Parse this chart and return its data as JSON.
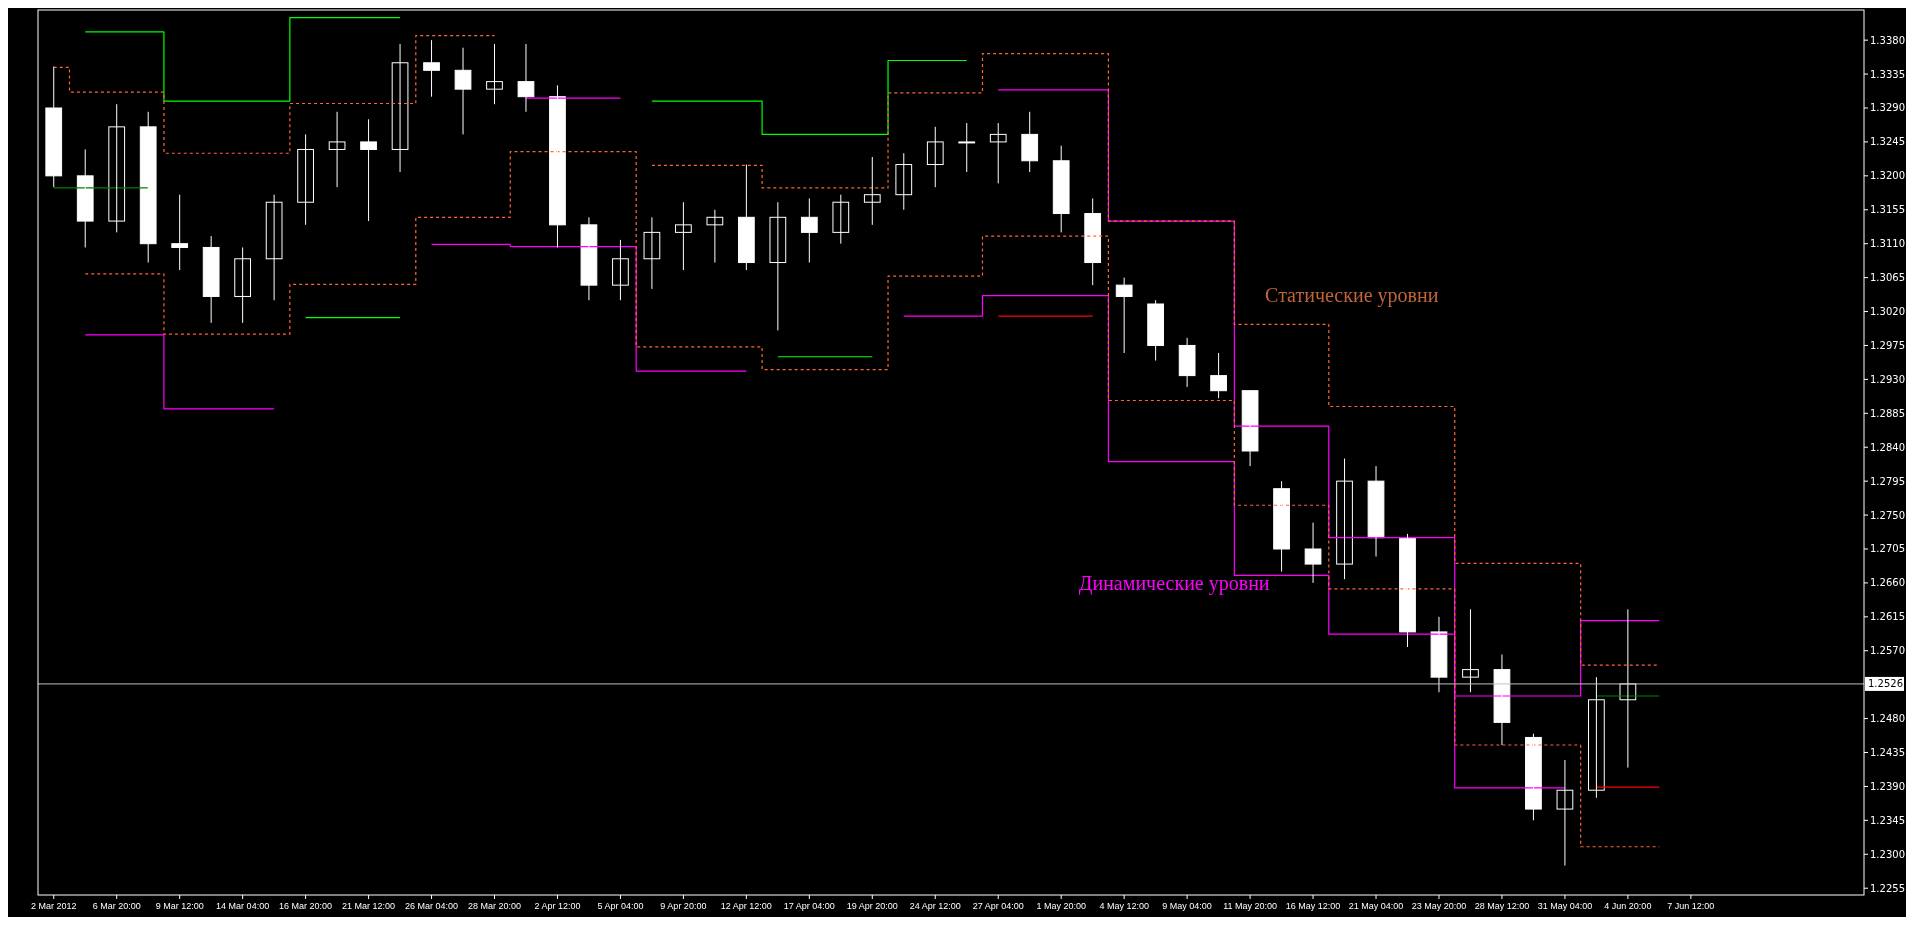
{
  "chart_data": {
    "type": "candlestick",
    "categories": [
      "2 Mar 2012",
      null,
      "6 Mar 20:00",
      null,
      "9 Mar 12:00",
      null,
      "14 Mar 04:00",
      null,
      "16 Mar 20:00",
      null,
      "21 Mar 12:00",
      null,
      "26 Mar 04:00",
      null,
      "28 Mar 20:00",
      null,
      "2 Apr 12:00",
      null,
      "5 Apr 04:00",
      null,
      "9 Apr 20:00",
      null,
      "12 Apr 12:00",
      null,
      "17 Apr 04:00",
      null,
      "19 Apr 20:00",
      null,
      "24 Apr 12:00",
      null,
      "27 Apr 04:00",
      null,
      "1 May 20:00",
      null,
      "4 May 12:00",
      null,
      "9 May 04:00",
      null,
      "11 May 20:00",
      null,
      "16 May 12:00",
      null,
      "21 May 04:00",
      null,
      "23 May 20:00",
      null,
      "28 May 12:00",
      null,
      "31 May 04:00",
      null,
      "4 Jun 20:00",
      null,
      "7 Jun 12:00",
      null,
      null,
      null,
      null,
      null
    ],
    "ohlc": [
      [
        1.329,
        1.3345,
        1.3185,
        1.32
      ],
      [
        1.32,
        1.3235,
        1.3105,
        1.314
      ],
      [
        1.314,
        1.3295,
        1.3125,
        1.3265
      ],
      [
        1.3265,
        1.3285,
        1.3085,
        1.311
      ],
      [
        1.311,
        1.3175,
        1.3075,
        1.3105
      ],
      [
        1.3105,
        1.312,
        1.3005,
        1.304
      ],
      [
        1.304,
        1.3105,
        1.3005,
        1.309
      ],
      [
        1.309,
        1.3175,
        1.3035,
        1.3165
      ],
      [
        1.3165,
        1.3255,
        1.3135,
        1.3235
      ],
      [
        1.3235,
        1.3285,
        1.3185,
        1.3245
      ],
      [
        1.3245,
        1.3275,
        1.314,
        1.3235
      ],
      [
        1.3235,
        1.3375,
        1.3205,
        1.335
      ],
      [
        1.335,
        1.338,
        1.3305,
        1.334
      ],
      [
        1.334,
        1.337,
        1.3255,
        1.3315
      ],
      [
        1.3315,
        1.3375,
        1.3295,
        1.3325
      ],
      [
        1.3325,
        1.3375,
        1.3285,
        1.3305
      ],
      [
        1.3305,
        1.332,
        1.3105,
        1.3135
      ],
      [
        1.3135,
        1.3145,
        1.3035,
        1.3055
      ],
      [
        1.3055,
        1.3115,
        1.3035,
        1.309
      ],
      [
        1.309,
        1.3145,
        1.305,
        1.3125
      ],
      [
        1.3125,
        1.3165,
        1.3075,
        1.3135
      ],
      [
        1.3135,
        1.3155,
        1.3085,
        1.3145
      ],
      [
        1.3145,
        1.3215,
        1.3075,
        1.3085
      ],
      [
        1.3085,
        1.3165,
        1.2995,
        1.3145
      ],
      [
        1.3145,
        1.317,
        1.3085,
        1.3125
      ],
      [
        1.3125,
        1.3175,
        1.311,
        1.3165
      ],
      [
        1.3165,
        1.3225,
        1.3135,
        1.3175
      ],
      [
        1.3175,
        1.323,
        1.3155,
        1.3215
      ],
      [
        1.3215,
        1.3265,
        1.3185,
        1.3245
      ],
      [
        1.3245,
        1.327,
        1.3205,
        1.3245
      ],
      [
        1.3245,
        1.327,
        1.319,
        1.3255
      ],
      [
        1.3255,
        1.3285,
        1.3205,
        1.322
      ],
      [
        1.322,
        1.324,
        1.3125,
        1.315
      ],
      [
        1.315,
        1.317,
        1.3055,
        1.3085
      ],
      [
        1.3055,
        1.3065,
        1.2965,
        1.304
      ],
      [
        1.303,
        1.3035,
        1.2955,
        1.2975
      ],
      [
        1.2975,
        1.2985,
        1.292,
        1.2935
      ],
      [
        1.2935,
        1.2965,
        1.2905,
        1.2915
      ],
      [
        1.2915,
        1.2915,
        1.2815,
        1.2835
      ],
      [
        1.2785,
        1.2795,
        1.2675,
        1.2705
      ],
      [
        1.2705,
        1.274,
        1.266,
        1.2685
      ],
      [
        1.2685,
        1.2825,
        1.2665,
        1.2795
      ],
      [
        1.2795,
        1.2815,
        1.2695,
        1.272
      ],
      [
        1.272,
        1.2725,
        1.2575,
        1.2595
      ],
      [
        1.2595,
        1.2615,
        1.2515,
        1.2535
      ],
      [
        1.2535,
        1.2625,
        1.2515,
        1.2545
      ],
      [
        1.2545,
        1.2565,
        1.2445,
        1.2475
      ],
      [
        1.2455,
        1.246,
        1.2345,
        1.236
      ],
      [
        1.236,
        1.2425,
        1.2285,
        1.2385
      ],
      [
        1.2385,
        1.2535,
        1.2375,
        1.2505
      ],
      [
        1.2505,
        1.2625,
        1.2415,
        1.2526
      ],
      null,
      null,
      null,
      null,
      null,
      null,
      null
    ],
    "series": [
      {
        "type": "step",
        "color": "#00ff00",
        "values": [
          null,
          1.3391,
          1.3391,
          1.3391,
          1.3299,
          1.3299,
          1.3299,
          1.3299,
          1.341,
          1.341,
          1.341,
          1.341,
          null,
          null,
          null,
          null,
          null,
          null,
          null,
          1.3299,
          1.3299,
          1.3299,
          1.3299,
          1.3255,
          1.3255,
          1.3255,
          1.3255,
          1.3353,
          1.3353,
          1.3353,
          null,
          null,
          null,
          null,
          null,
          null,
          null,
          null,
          null,
          null,
          null,
          null,
          null,
          null,
          null,
          null,
          null,
          null,
          null,
          null,
          null,
          null,
          null,
          null,
          null,
          null,
          null,
          null
        ]
      },
      {
        "type": "step",
        "color": "#ff00ff",
        "values": [
          null,
          null,
          null,
          null,
          null,
          null,
          null,
          null,
          null,
          null,
          null,
          null,
          null,
          null,
          null,
          1.3303,
          1.3303,
          1.3303,
          1.3303,
          null,
          null,
          null,
          null,
          null,
          null,
          null,
          null,
          null,
          null,
          null,
          1.3314,
          1.3314,
          1.3314,
          1.3314,
          1.314,
          1.314,
          1.314,
          1.314,
          1.2868,
          1.2868,
          1.2868,
          1.272,
          1.272,
          1.272,
          1.272,
          1.251,
          1.251,
          1.251,
          1.251,
          1.261,
          1.261,
          1.261,
          null,
          null,
          null,
          null,
          null,
          null
        ]
      },
      {
        "type": "step",
        "color": "#00ff00",
        "values": [
          null,
          null,
          null,
          null,
          null,
          null,
          null,
          null,
          1.3012,
          1.3012,
          1.3012,
          1.3012,
          null,
          null,
          null,
          null,
          null,
          null,
          null,
          null,
          null,
          null,
          null,
          1.296,
          1.296,
          1.296,
          1.296,
          null,
          null,
          null,
          null,
          null,
          null,
          null,
          null,
          null,
          null,
          null,
          null,
          null,
          null,
          null,
          null,
          null,
          null,
          null,
          null,
          null,
          null,
          null,
          null,
          null,
          null,
          null,
          null,
          null,
          null,
          null
        ]
      },
      {
        "type": "step",
        "color": "#ff00ff",
        "values": [
          null,
          1.2989,
          1.2989,
          1.2989,
          1.2891,
          1.2891,
          1.2891,
          1.2891,
          null,
          null,
          null,
          null,
          1.3109,
          1.3109,
          1.3109,
          1.3106,
          1.3106,
          1.3106,
          1.3106,
          1.2941,
          1.2941,
          1.2941,
          1.2941,
          null,
          null,
          null,
          null,
          1.3014,
          1.3014,
          1.3014,
          1.3041,
          1.3041,
          1.3041,
          1.3041,
          1.2821,
          1.2821,
          1.2821,
          1.2821,
          1.267,
          1.267,
          1.267,
          1.2592,
          1.2592,
          1.2592,
          1.2592,
          1.2388,
          1.2388,
          1.2388,
          1.2388,
          null,
          null,
          null,
          null,
          null,
          null,
          null,
          null,
          null
        ]
      },
      {
        "type": "step",
        "color": "#ff6633",
        "line_style": "dashed",
        "values": [
          1.3344,
          1.3311,
          1.3311,
          1.3311,
          1.323,
          1.323,
          1.323,
          1.323,
          1.3296,
          1.3296,
          1.3296,
          1.3296,
          1.3386,
          1.3386,
          1.3386,
          null,
          null,
          null,
          null,
          1.3214,
          1.3214,
          1.3214,
          1.3214,
          1.3184,
          1.3184,
          1.3184,
          1.3184,
          1.331,
          1.331,
          1.331,
          1.3362,
          1.3362,
          1.3362,
          1.3362,
          1.314,
          1.314,
          1.314,
          1.314,
          1.3003,
          1.3003,
          1.3003,
          1.2894,
          1.2894,
          1.2894,
          1.2894,
          1.2686,
          1.2686,
          1.2686,
          1.2686,
          1.2551,
          1.2551,
          1.2551,
          null,
          null,
          null,
          null,
          null,
          null
        ]
      },
      {
        "type": "step",
        "color": "#ff6633",
        "line_style": "dashed",
        "values": [
          null,
          1.307,
          1.307,
          1.307,
          1.299,
          1.299,
          1.299,
          1.299,
          1.3056,
          1.3056,
          1.3056,
          1.3056,
          1.3145,
          1.3145,
          1.3145,
          1.3232,
          1.3232,
          1.3232,
          1.3232,
          1.2973,
          1.2973,
          1.2973,
          1.2973,
          1.2943,
          1.2943,
          1.2943,
          1.2943,
          1.3067,
          1.3067,
          1.3067,
          1.312,
          1.312,
          1.312,
          1.312,
          1.2902,
          1.2902,
          1.2902,
          1.2902,
          1.2763,
          1.2763,
          1.2763,
          1.2652,
          1.2652,
          1.2652,
          1.2652,
          1.2445,
          1.2445,
          1.2445,
          1.2445,
          1.231,
          1.231,
          1.231,
          null,
          null,
          null,
          null,
          null,
          null
        ]
      },
      {
        "type": "step",
        "color": "#ff0000",
        "values": [
          null,
          null,
          null,
          null,
          null,
          null,
          null,
          null,
          null,
          null,
          null,
          null,
          null,
          null,
          null,
          null,
          null,
          null,
          null,
          null,
          null,
          null,
          null,
          null,
          null,
          null,
          null,
          null,
          null,
          null,
          1.3014,
          1.3014,
          1.3014,
          1.3014,
          null,
          null,
          null,
          null,
          null,
          null,
          null,
          null,
          null,
          null,
          null,
          null,
          null,
          null,
          null,
          1.2389,
          1.2389,
          1.2389,
          null,
          null,
          null,
          null,
          null,
          null
        ]
      },
      {
        "type": "step",
        "color": "#008000",
        "values": [
          1.3184,
          1.3184,
          1.3184,
          1.3184,
          null,
          null,
          null,
          null,
          null,
          null,
          null,
          null,
          null,
          null,
          null,
          null,
          null,
          null,
          null,
          null,
          null,
          null,
          null,
          null,
          null,
          null,
          null,
          null,
          null,
          null,
          null,
          null,
          null,
          null,
          null,
          null,
          null,
          null,
          null,
          null,
          null,
          null,
          null,
          null,
          null,
          null,
          null,
          null,
          null,
          1.251,
          1.251,
          1.251,
          null,
          null,
          null,
          null,
          null,
          null
        ]
      }
    ],
    "ylim": [
      1.2246,
      1.342
    ],
    "yticks": [
      {
        "value": 1.338,
        "label": "1.3380"
      },
      {
        "value": 1.3335,
        "label": "1.3335"
      },
      {
        "value": 1.329,
        "label": "1.3290"
      },
      {
        "value": 1.3245,
        "label": "1.3245"
      },
      {
        "value": 1.32,
        "label": "1.3200"
      },
      {
        "value": 1.3155,
        "label": "1.3155"
      },
      {
        "value": 1.311,
        "label": "1.3110"
      },
      {
        "value": 1.3065,
        "label": "1.3065"
      },
      {
        "value": 1.302,
        "label": "1.3020"
      },
      {
        "value": 1.2975,
        "label": "1.2975"
      },
      {
        "value": 1.293,
        "label": "1.2930"
      },
      {
        "value": 1.2885,
        "label": "1.2885"
      },
      {
        "value": 1.284,
        "label": "1.2840"
      },
      {
        "value": 1.2795,
        "label": "1.2795"
      },
      {
        "value": 1.275,
        "label": "1.2750"
      },
      {
        "value": 1.2705,
        "label": "1.2705"
      },
      {
        "value": 1.266,
        "label": "1.2660"
      },
      {
        "value": 1.2615,
        "label": "1.2615"
      },
      {
        "value": 1.257,
        "label": "1.2570"
      },
      {
        "value": 1.248,
        "label": "1.2480"
      },
      {
        "value": 1.2435,
        "label": "1.2435"
      },
      {
        "value": 1.239,
        "label": "1.2390"
      },
      {
        "value": 1.2345,
        "label": "1.2345"
      },
      {
        "value": 1.23,
        "label": "1.2300"
      },
      {
        "value": 1.2255,
        "label": "1.2255"
      }
    ],
    "ref_lines": [
      {
        "axis": "y",
        "value": 1.2526,
        "label": "1.2526",
        "color": "#c0c0c0"
      }
    ],
    "annotations": [
      "Статические уровни",
      "Динамические уровни"
    ]
  }
}
